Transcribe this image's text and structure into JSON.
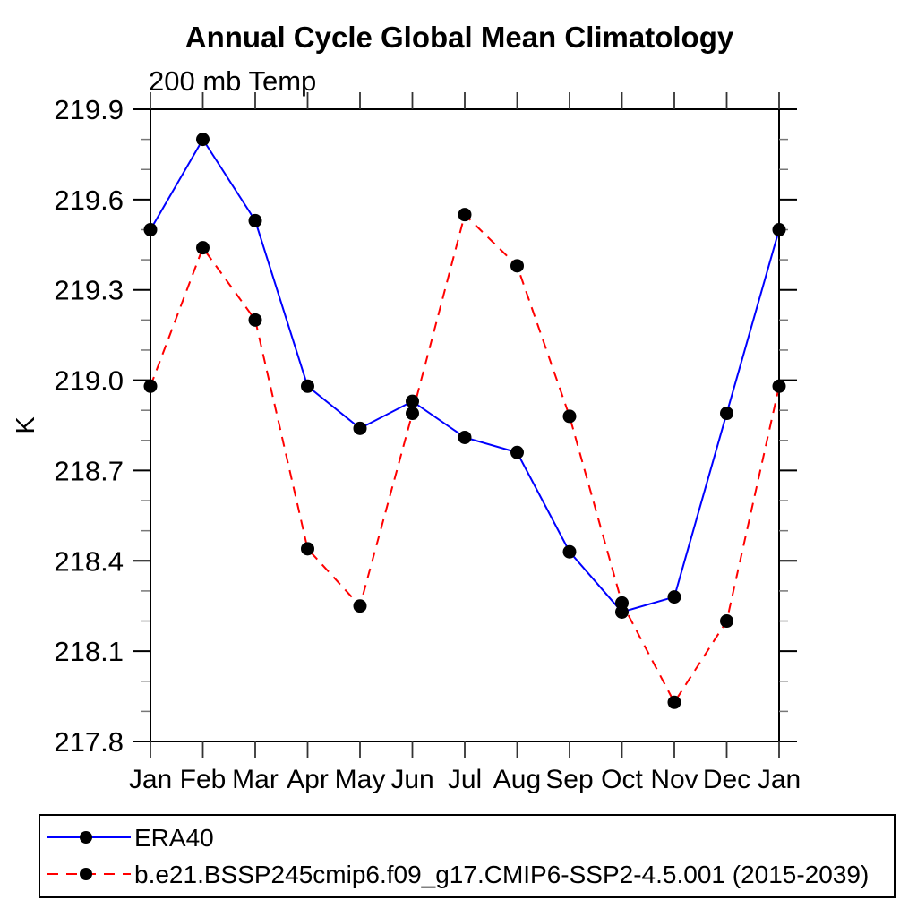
{
  "page": {
    "background": "#ffffff"
  },
  "chart_data": {
    "type": "line",
    "title": "Annual Cycle Global Mean Climatology",
    "subtitle": "200 mb Temp",
    "ylabel": "K",
    "xlabel": "",
    "categories": [
      "Jan",
      "Feb",
      "Mar",
      "Apr",
      "May",
      "Jun",
      "Jul",
      "Aug",
      "Sep",
      "Oct",
      "Nov",
      "Dec",
      "Jan"
    ],
    "ylim": [
      217.8,
      219.9
    ],
    "ytick_major_step": 0.3,
    "ytick_minor_step": 0.1,
    "yticks": [
      217.8,
      218.1,
      218.4,
      218.7,
      219.0,
      219.3,
      219.6,
      219.9
    ],
    "grid": false,
    "legend_position": "bottom-left-box",
    "marker_color": "#000000",
    "series": [
      {
        "name": "ERA40",
        "color": "#0000ff",
        "style": "solid",
        "marker": "circle",
        "values": [
          219.5,
          219.8,
          219.53,
          218.98,
          218.84,
          218.93,
          218.81,
          218.76,
          218.43,
          218.23,
          218.28,
          218.89,
          219.5
        ]
      },
      {
        "name": "b.e21.BSSP245cmip6.f09_g17.CMIP6-SSP2-4.5.001 (2015-2039)",
        "color": "#ff0000",
        "style": "dashed",
        "marker": "circle",
        "values": [
          218.98,
          219.44,
          219.2,
          218.44,
          218.25,
          218.89,
          219.55,
          219.38,
          218.88,
          218.26,
          217.93,
          218.2,
          218.98
        ]
      }
    ]
  }
}
